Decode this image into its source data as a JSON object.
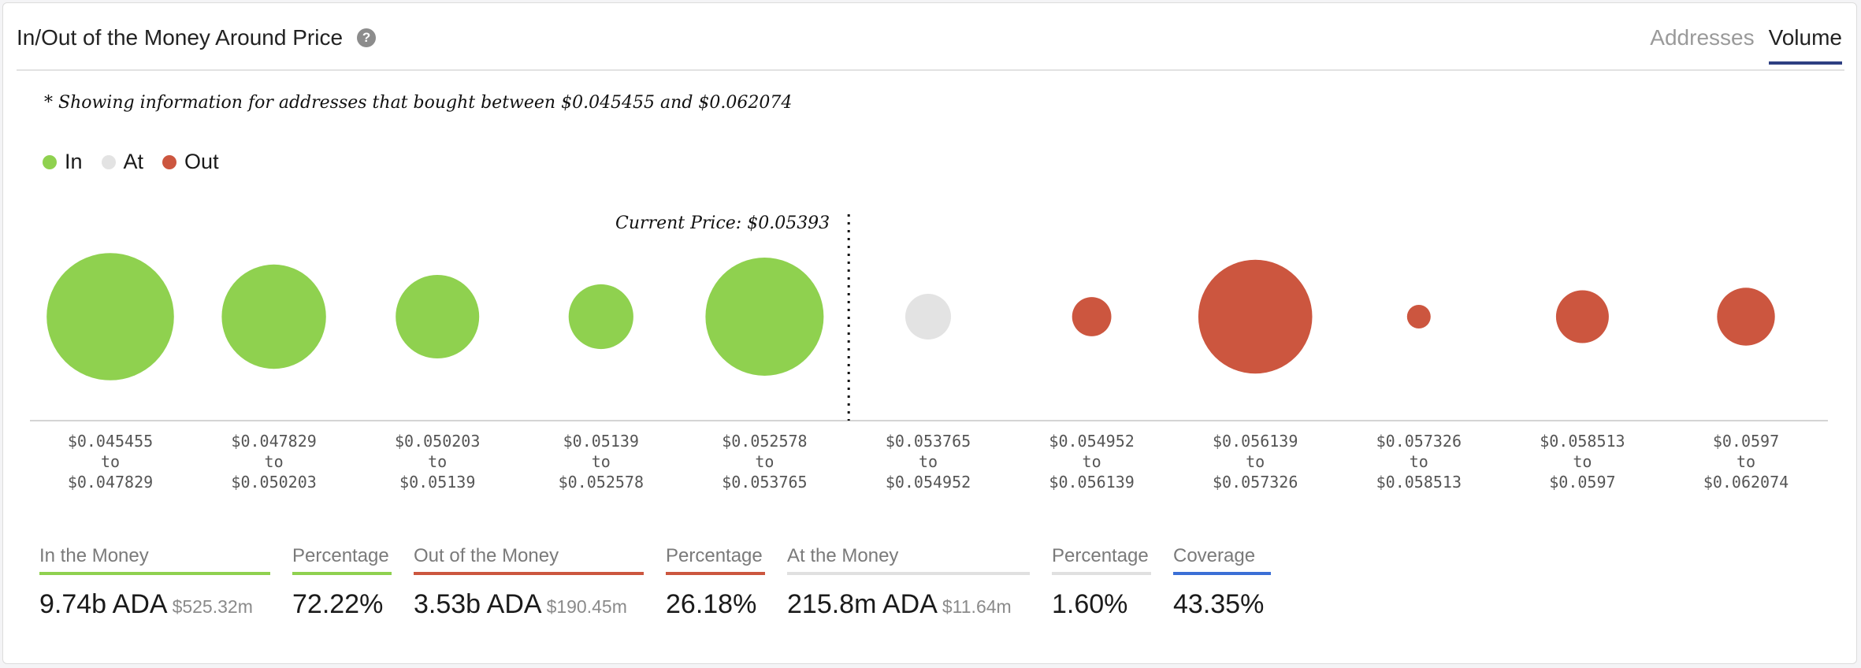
{
  "header": {
    "title": "In/Out of the Money Around Price",
    "help_icon": "question-circle-icon",
    "tabs": [
      {
        "label": "Addresses",
        "active": false
      },
      {
        "label": "Volume",
        "active": true
      }
    ]
  },
  "note": "* Showing information for addresses that bought between $0.045455 and $0.062074",
  "legend": [
    {
      "label": "In",
      "color": "#8fd14f"
    },
    {
      "label": "At",
      "color": "#e3e3e3"
    },
    {
      "label": "Out",
      "color": "#cc563f"
    }
  ],
  "chart_data": {
    "type": "scatter",
    "encoding": "bubble size = relative volume",
    "current_price_label": "Current Price: $0.05393",
    "current_price": 0.05393,
    "bins": [
      {
        "from": "$0.045455",
        "to": "$0.047829",
        "status": "in",
        "size": 1.16
      },
      {
        "from": "$0.047829",
        "to": "$0.050203",
        "status": "in",
        "size": 0.78
      },
      {
        "from": "$0.050203",
        "to": "$0.05139",
        "status": "in",
        "size": 0.5
      },
      {
        "from": "$0.05139",
        "to": "$0.052578",
        "status": "in",
        "size": 0.3
      },
      {
        "from": "$0.052578",
        "to": "$0.053765",
        "status": "in",
        "size": 1.0
      },
      {
        "from": "$0.053765",
        "to": "$0.054952",
        "status": "at",
        "size": 0.15
      },
      {
        "from": "$0.054952",
        "to": "$0.056139",
        "status": "out",
        "size": 0.11
      },
      {
        "from": "$0.056139",
        "to": "$0.057326",
        "status": "out",
        "size": 0.93
      },
      {
        "from": "$0.057326",
        "to": "$0.058513",
        "status": "out",
        "size": 0.04
      },
      {
        "from": "$0.058513",
        "to": "$0.0597",
        "status": "out",
        "size": 0.2
      },
      {
        "from": "$0.0597",
        "to": "$0.062074",
        "status": "out",
        "size": 0.24
      }
    ],
    "to_word": "to"
  },
  "stats": [
    {
      "label": "In the Money",
      "value": "9.74b ADA",
      "sub": "$525.32m",
      "color": "#8fd14f"
    },
    {
      "label": "Percentage",
      "value": "72.22%",
      "sub": "",
      "color": "#8fd14f"
    },
    {
      "label": "Out of the Money",
      "value": "3.53b ADA",
      "sub": "$190.45m",
      "color": "#cc563f"
    },
    {
      "label": "Percentage",
      "value": "26.18%",
      "sub": "",
      "color": "#cc563f"
    },
    {
      "label": "At the Money",
      "value": "215.8m ADA",
      "sub": "$11.64m",
      "color": "#e0e0e0"
    },
    {
      "label": "Percentage",
      "value": "1.60%",
      "sub": "",
      "color": "#e0e0e0"
    },
    {
      "label": "Coverage",
      "value": "43.35%",
      "sub": "",
      "color": "#3b6fd6"
    }
  ]
}
